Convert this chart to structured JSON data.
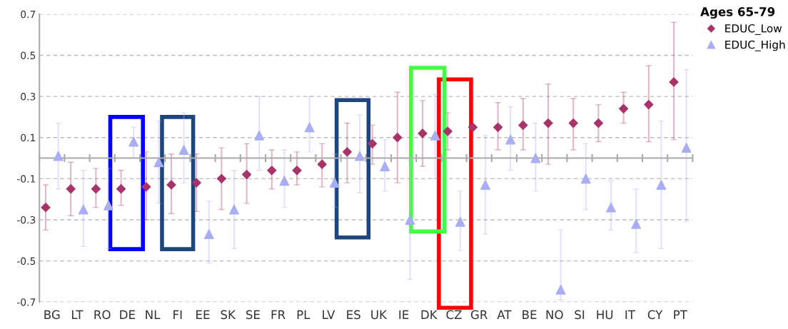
{
  "chart_data": {
    "type": "scatter",
    "legend_title": "Ages 65-79",
    "categories": [
      "BG",
      "LT",
      "RO",
      "DE",
      "NL",
      "FI",
      "EE",
      "SK",
      "SE",
      "FR",
      "PL",
      "LV",
      "ES",
      "UK",
      "IE",
      "DK",
      "CZ",
      "GR",
      "AT",
      "BE",
      "NO",
      "SI",
      "HU",
      "IT",
      "CY",
      "PT"
    ],
    "series": [
      {
        "name": "EDUC_Low",
        "color": "#a8336a",
        "marker": "diamond",
        "values": [
          -0.24,
          -0.15,
          -0.15,
          -0.15,
          -0.14,
          -0.13,
          -0.12,
          -0.1,
          -0.08,
          -0.06,
          -0.06,
          -0.03,
          0.03,
          0.07,
          0.1,
          0.12,
          0.13,
          0.15,
          0.15,
          0.16,
          0.17,
          0.17,
          0.17,
          0.24,
          0.26,
          0.37
        ],
        "errors": [
          [
            -0.35,
            -0.13
          ],
          [
            -0.28,
            -0.02
          ],
          [
            -0.24,
            -0.05
          ],
          [
            -0.23,
            -0.06
          ],
          [
            -0.3,
            0.03
          ],
          [
            -0.27,
            0.02
          ],
          [
            -0.26,
            0.02
          ],
          [
            -0.25,
            0.05
          ],
          [
            -0.22,
            0.07
          ],
          [
            -0.15,
            0.04
          ],
          [
            -0.13,
            0.03
          ],
          [
            -0.14,
            0.07
          ],
          [
            -0.12,
            0.17
          ],
          [
            -0.03,
            0.16
          ],
          [
            -0.12,
            0.32
          ],
          [
            -0.04,
            0.28
          ],
          [
            0.04,
            0.22
          ],
          null,
          [
            0.04,
            0.27
          ],
          [
            0.04,
            0.29
          ],
          [
            -0.03,
            0.36
          ],
          [
            0.04,
            0.29
          ],
          [
            0.08,
            0.26
          ],
          [
            0.17,
            0.32
          ],
          [
            0.08,
            0.45
          ],
          [
            0.09,
            0.66
          ]
        ]
      },
      {
        "name": "EDUC_High",
        "color": "#a9aef2",
        "marker": "triangle",
        "values": [
          0.01,
          -0.25,
          -0.23,
          0.08,
          -0.02,
          0.04,
          -0.37,
          -0.25,
          0.11,
          -0.11,
          0.15,
          -0.12,
          0.01,
          -0.04,
          -0.3,
          0.11,
          -0.31,
          -0.13,
          0.09,
          0.0,
          -0.64,
          -0.1,
          -0.24,
          -0.32,
          -0.13,
          0.05
        ],
        "errors": [
          [
            -0.15,
            0.17
          ],
          [
            -0.43,
            -0.06
          ],
          [
            -0.44,
            -0.05
          ],
          [
            0.0,
            0.15
          ],
          [
            -0.22,
            0.18
          ],
          [
            -0.12,
            0.22
          ],
          [
            -0.51,
            -0.21
          ],
          [
            -0.44,
            -0.06
          ],
          [
            -0.06,
            0.3
          ],
          [
            -0.24,
            0.04
          ],
          [
            0.03,
            0.3
          ],
          [
            -0.24,
            0.02
          ],
          [
            -0.17,
            0.21
          ],
          [
            -0.16,
            0.09
          ],
          [
            -0.59,
            -0.01
          ],
          [
            -0.1,
            0.31
          ],
          [
            -0.45,
            -0.16
          ],
          [
            -0.37,
            0.11
          ],
          [
            -0.06,
            0.25
          ],
          [
            -0.16,
            0.17
          ],
          [
            -0.69,
            -0.35
          ],
          [
            -0.25,
            0.07
          ],
          [
            -0.35,
            -0.11
          ],
          [
            -0.46,
            -0.15
          ],
          [
            -0.44,
            0.18
          ],
          [
            -0.31,
            0.43
          ]
        ]
      }
    ],
    "ylim": [
      -0.7,
      0.7
    ],
    "yticks": [
      -0.7,
      -0.5,
      -0.3,
      -0.1,
      0.1,
      0.3,
      0.5,
      0.7
    ],
    "grid": "y",
    "legend": "top right"
  }
}
